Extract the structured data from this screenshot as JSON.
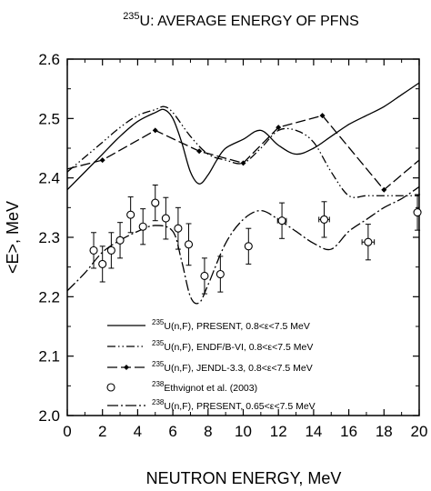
{
  "chart_data": {
    "type": "line",
    "title_sup": "235",
    "title_main": "U: AVERAGE ENERGY OF PFNS",
    "xlabel": "NEUTRON ENERGY, MeV",
    "ylabel": "<E>, MeV",
    "xlim": [
      0,
      20
    ],
    "ylim": [
      2.0,
      2.6
    ],
    "xticks": [
      0,
      2,
      4,
      6,
      8,
      10,
      12,
      14,
      16,
      18,
      20
    ],
    "xtick_labels": [
      "0",
      "2",
      "4",
      "6",
      "8",
      "10",
      "12",
      "14",
      "16",
      "18",
      "20"
    ],
    "yticks": [
      2.0,
      2.1,
      2.2,
      2.3,
      2.4,
      2.5,
      2.6
    ],
    "ytick_labels": [
      "2.0",
      "2.1",
      "2.2",
      "2.3",
      "2.4",
      "2.5",
      "2.6"
    ],
    "grid": false,
    "legend_position": "bottom-center",
    "series": [
      {
        "style": "solid",
        "legend_sup": "235",
        "legend_text": "U(n,F), PRESENT, 0.8<ε<7.5 MeV",
        "x": [
          0,
          1,
          2,
          3,
          4,
          5,
          5.5,
          6,
          6.5,
          7,
          7.5,
          8,
          8.5,
          9,
          10,
          11,
          12,
          13,
          14,
          15,
          16,
          17,
          18,
          19,
          20
        ],
        "y": [
          2.38,
          2.41,
          2.44,
          2.47,
          2.495,
          2.51,
          2.515,
          2.5,
          2.46,
          2.41,
          2.39,
          2.405,
          2.43,
          2.45,
          2.465,
          2.48,
          2.455,
          2.44,
          2.45,
          2.47,
          2.49,
          2.505,
          2.52,
          2.54,
          2.56
        ]
      },
      {
        "style": "dash-dot-dot",
        "legend_sup": "235",
        "legend_text": "U(n,F), ENDF/B-VI, 0.8<ε<7.5 MeV",
        "x": [
          0,
          1,
          2,
          3,
          4,
          5,
          5.5,
          6,
          7,
          8,
          9,
          10,
          11,
          12,
          13,
          14,
          15,
          16,
          17,
          18,
          19,
          20
        ],
        "y": [
          2.41,
          2.435,
          2.46,
          2.485,
          2.505,
          2.515,
          2.52,
          2.51,
          2.47,
          2.44,
          2.43,
          2.425,
          2.45,
          2.48,
          2.48,
          2.46,
          2.41,
          2.37,
          2.37,
          2.37,
          2.37,
          2.37
        ]
      },
      {
        "style": "dash-diamond",
        "legend_sup": "235",
        "legend_text": "U(n,F), JENDL-3.3, 0.8<ε<7.5 MeV",
        "x": [
          0,
          2,
          5,
          7.5,
          10,
          12,
          14.5,
          18,
          20
        ],
        "y": [
          2.415,
          2.43,
          2.48,
          2.445,
          2.425,
          2.485,
          2.505,
          2.38,
          2.43
        ],
        "markers": [
          2,
          5,
          7.5,
          10,
          12,
          14.5,
          18
        ]
      },
      {
        "style": "long-dash-dot",
        "legend_sup": "238",
        "legend_text": "U(n,F), PRESENT, 0.65<ε<7.5 MeV",
        "x": [
          0,
          1,
          2,
          3,
          4,
          5,
          6,
          6.5,
          7,
          7.5,
          8,
          9,
          10,
          11,
          12,
          13,
          14,
          15,
          16,
          17,
          18,
          19,
          20
        ],
        "y": [
          2.21,
          2.24,
          2.275,
          2.295,
          2.31,
          2.32,
          2.31,
          2.26,
          2.2,
          2.19,
          2.22,
          2.29,
          2.33,
          2.345,
          2.33,
          2.31,
          2.29,
          2.28,
          2.31,
          2.33,
          2.35,
          2.365,
          2.385
        ]
      }
    ],
    "experimental": {
      "legend_text": "Ethvignot et al. (2003)",
      "points": [
        {
          "x": 1.5,
          "y": 2.278,
          "err": 0.03
        },
        {
          "x": 2.0,
          "y": 2.255,
          "err": 0.03
        },
        {
          "x": 2.5,
          "y": 2.278,
          "err": 0.03
        },
        {
          "x": 3.0,
          "y": 2.295,
          "err": 0.03
        },
        {
          "x": 3.6,
          "y": 2.338,
          "err": 0.03
        },
        {
          "x": 4.3,
          "y": 2.318,
          "err": 0.03
        },
        {
          "x": 5.0,
          "y": 2.358,
          "err": 0.03
        },
        {
          "x": 5.6,
          "y": 2.332,
          "err": 0.035
        },
        {
          "x": 6.3,
          "y": 2.315,
          "err": 0.035
        },
        {
          "x": 6.9,
          "y": 2.288,
          "err": 0.035
        },
        {
          "x": 7.8,
          "y": 2.235,
          "err": 0.03
        },
        {
          "x": 8.7,
          "y": 2.238,
          "err": 0.03
        },
        {
          "x": 10.3,
          "y": 2.285,
          "err": 0.03
        },
        {
          "x": 12.2,
          "y": 2.328,
          "err": 0.03,
          "xerr": 0.25
        },
        {
          "x": 14.6,
          "y": 2.33,
          "err": 0.03,
          "xerr": 0.3
        },
        {
          "x": 17.1,
          "y": 2.292,
          "err": 0.03,
          "xerr": 0.35
        },
        {
          "x": 19.9,
          "y": 2.342,
          "err": 0.03
        }
      ]
    }
  }
}
